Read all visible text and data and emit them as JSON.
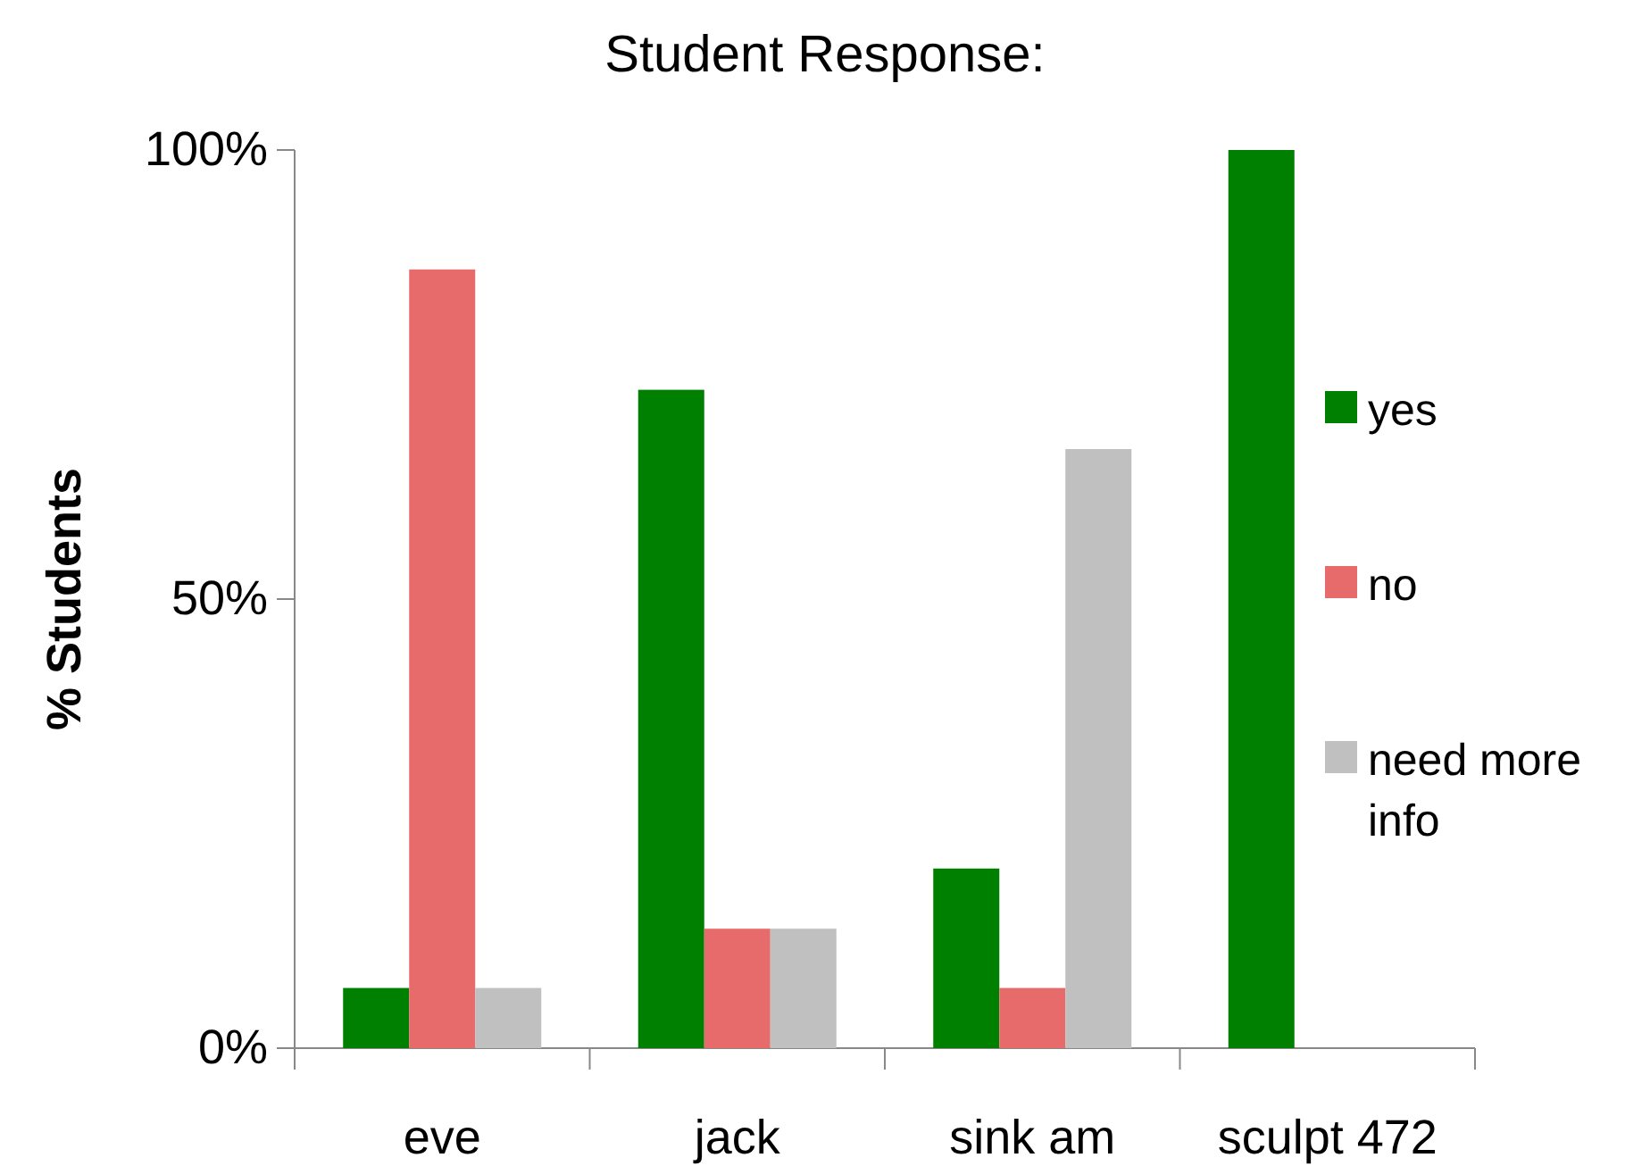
{
  "chart_data": {
    "type": "bar",
    "title": "Student Response:",
    "ylabel": "% Students",
    "categories": [
      "eve",
      "jack",
      "sink am",
      "sculpt 472"
    ],
    "series": [
      {
        "name": "yes",
        "color": "#008000",
        "values": [
          6.7,
          73.3,
          20,
          100
        ]
      },
      {
        "name": "no",
        "color": "#e86b6b",
        "values": [
          86.7,
          13.3,
          6.7,
          0
        ]
      },
      {
        "name": "need more info",
        "color": "#c0c0c0",
        "values": [
          6.7,
          13.3,
          66.7,
          0
        ]
      }
    ],
    "ylim": [
      0,
      100
    ],
    "yticks": [
      {
        "value": 0,
        "label": "0%"
      },
      {
        "value": 50,
        "label": "50%"
      },
      {
        "value": 100,
        "label": "100%"
      }
    ],
    "grid": false,
    "legend": "right"
  }
}
